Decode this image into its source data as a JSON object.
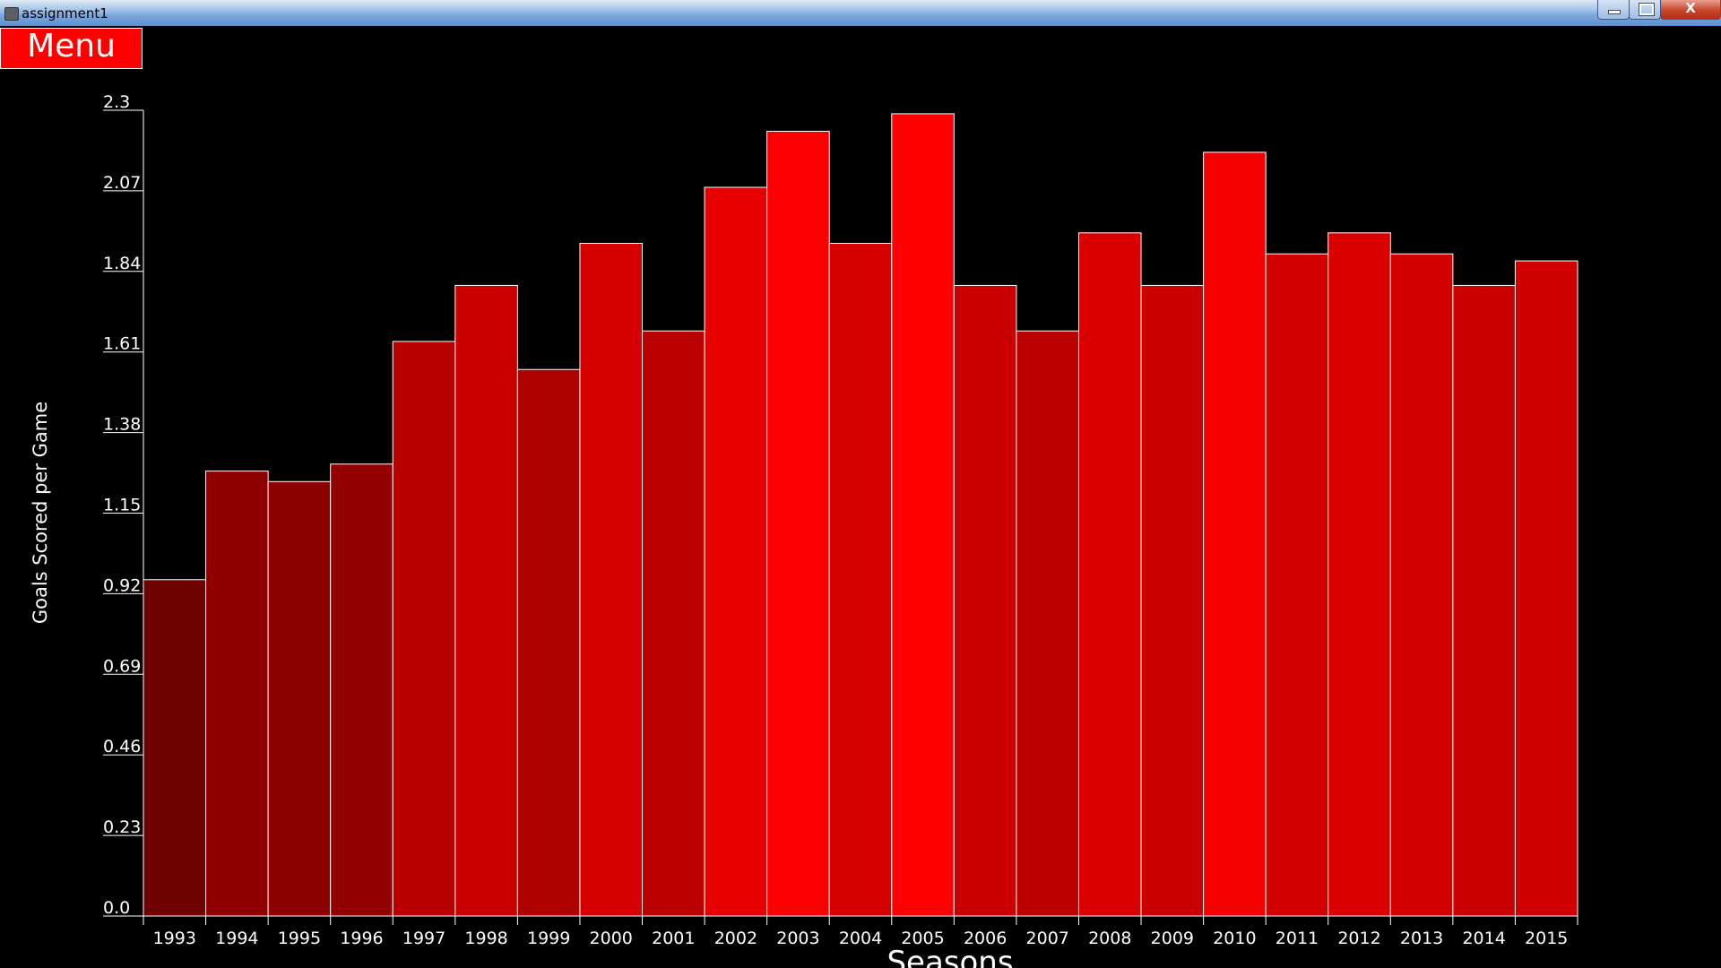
{
  "window": {
    "title": "assignment1",
    "minimize_icon": "minimize-icon",
    "maximize_icon": "maximize-icon",
    "close_icon": "close-icon",
    "close_symbol": "X"
  },
  "menu": {
    "label": "Menu"
  },
  "chart_data": {
    "type": "bar",
    "title": "",
    "xlabel": "Seasons",
    "ylabel": "Goals Scored per Game",
    "ylim": [
      0,
      2.3
    ],
    "y_ticks": [
      "0.0",
      "0.23",
      "0.46",
      "0.69",
      "0.92",
      "1.15",
      "1.38",
      "1.61",
      "1.84",
      "2.07",
      "2.3"
    ],
    "categories": [
      "1993",
      "1994",
      "1995",
      "1996",
      "1997",
      "1998",
      "1999",
      "2000",
      "2001",
      "2002",
      "2003",
      "2004",
      "2005",
      "2006",
      "2007",
      "2008",
      "2009",
      "2010",
      "2011",
      "2012",
      "2013",
      "2014",
      "2015"
    ],
    "values": [
      0.96,
      1.27,
      1.24,
      1.29,
      1.64,
      1.8,
      1.56,
      1.92,
      1.67,
      2.08,
      2.24,
      1.92,
      2.29,
      1.8,
      1.67,
      1.95,
      1.8,
      2.18,
      1.89,
      1.95,
      1.89,
      1.8,
      1.87
    ],
    "grid": false,
    "bar_color_rule": "red intensity scales with value",
    "bar_outline_color": "#ffffff"
  }
}
